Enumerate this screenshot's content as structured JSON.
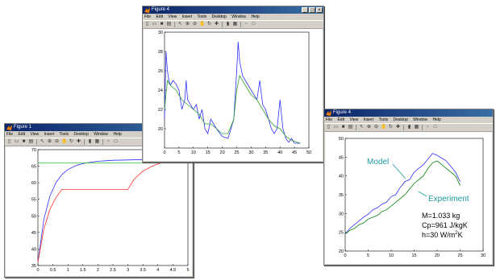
{
  "windows": [
    {
      "id": "w1",
      "title": "Figure 1"
    },
    {
      "id": "w2",
      "title": "Figure 4"
    },
    {
      "id": "w3",
      "title": "Figure 4"
    }
  ],
  "menu": [
    "File",
    "Edit",
    "View",
    "Insert",
    "Tools",
    "Desktop",
    "Window",
    "Help"
  ],
  "toolbar_icons": [
    "new-file-icon",
    "open-folder-icon",
    "save-icon",
    "print-icon",
    "arrow-icon",
    "zoom-in-icon",
    "zoom-out-icon",
    "pan-icon",
    "rotate-icon",
    "data-cursor-icon",
    "colorbar-icon",
    "legend-icon",
    "hide-plot-icon",
    "show-plot-icon"
  ],
  "chart_data": [
    {
      "window": "w1",
      "type": "line",
      "xlim": [
        0,
        5
      ],
      "ylim": [
        35,
        70
      ],
      "xticks": [
        "0",
        "0.5",
        "1",
        "1.5",
        "2",
        "2.5",
        "3",
        "3.5",
        "4",
        "4.5",
        "5"
      ],
      "yticks": [
        "35",
        "40",
        "45",
        "50",
        "55",
        "60",
        "65",
        "70"
      ],
      "series": [
        {
          "color": "#3030ff",
          "x": [
            0,
            0.2,
            0.4,
            0.6,
            0.8,
            1,
            1.3,
            1.6,
            2,
            2.5,
            3,
            3.5,
            4,
            4.5,
            5
          ],
          "y": [
            36,
            49,
            56,
            60,
            62.5,
            64,
            65.3,
            66,
            66.5,
            66.8,
            66.9,
            67,
            67,
            67,
            67
          ]
        },
        {
          "color": "#ff3030",
          "x": [
            0,
            0.2,
            0.4,
            0.6,
            0.8,
            1,
            1.5,
            2,
            2.5,
            3,
            3.2,
            3.5,
            3.8,
            4.1,
            4.5,
            5
          ],
          "y": [
            36,
            46,
            52,
            55.5,
            58,
            58,
            58,
            58,
            58,
            58,
            61,
            63.5,
            65,
            66,
            66.5,
            66.8
          ]
        },
        {
          "color": "#30c030",
          "x": [
            0,
            5
          ],
          "y": [
            66,
            66
          ]
        }
      ]
    },
    {
      "window": "w2",
      "type": "line",
      "xlim": [
        0,
        50
      ],
      "ylim": [
        18,
        30
      ],
      "xticks": [
        "0",
        "5",
        "10",
        "15",
        "20",
        "25",
        "30",
        "35",
        "40",
        "45",
        "50"
      ],
      "yticks": [
        "20",
        "22",
        "24",
        "26",
        "28",
        "30"
      ],
      "series": [
        {
          "color": "#3030ff",
          "x": [
            0,
            0.5,
            1,
            1.5,
            2,
            3,
            4,
            5,
            6,
            7,
            7.5,
            8,
            9,
            10,
            11,
            12,
            13,
            14,
            15,
            16,
            18,
            20,
            22,
            24,
            25,
            25.5,
            26,
            27,
            28,
            30,
            32,
            33,
            34,
            35,
            36,
            37,
            38,
            39,
            40,
            41,
            42,
            43,
            44,
            45,
            47
          ],
          "y": [
            21,
            28,
            26,
            25,
            24.5,
            25,
            24.6,
            24,
            22,
            23,
            25,
            23,
            22.5,
            22,
            22.5,
            21,
            22,
            20,
            19.5,
            21,
            20,
            19.2,
            19,
            21,
            26,
            29,
            27,
            25.5,
            25,
            24,
            23,
            25,
            22.5,
            22,
            21,
            20,
            19.5,
            20,
            23,
            20,
            19,
            18.6,
            19,
            18.5,
            18.5
          ]
        },
        {
          "color": "#30a030",
          "x": [
            0,
            1,
            2,
            4,
            6,
            8,
            10,
            12,
            14,
            16,
            18,
            20,
            22,
            24,
            25,
            26,
            28,
            30,
            32,
            34,
            36,
            38,
            40,
            42,
            44,
            47
          ],
          "y": [
            22,
            25,
            24.5,
            24,
            23,
            22.5,
            22,
            21.5,
            20.5,
            20.5,
            20,
            19.5,
            19.5,
            21,
            24,
            25.5,
            24.5,
            23.5,
            23,
            22,
            21,
            20.3,
            20,
            19.2,
            18.8,
            18.5
          ]
        }
      ]
    },
    {
      "window": "w3",
      "type": "line",
      "xlim": [
        0,
        30
      ],
      "ylim": [
        20,
        50
      ],
      "xticks": [
        "0",
        "5",
        "10",
        "15",
        "20",
        "25",
        "30"
      ],
      "yticks": [
        "20",
        "25",
        "30",
        "35",
        "40",
        "45",
        "50"
      ],
      "series": [
        {
          "name": "Model",
          "color": "#3030ff",
          "x": [
            0,
            1,
            2,
            3,
            4,
            5,
            6,
            7,
            8,
            9,
            10,
            11,
            12,
            13,
            14,
            15,
            16,
            17,
            18,
            19,
            20,
            22,
            24,
            25
          ],
          "y": [
            24.5,
            26,
            27,
            28,
            29,
            29.8,
            31,
            31.5,
            32.5,
            33,
            34.5,
            35,
            37,
            38.5,
            39,
            41,
            42,
            43,
            44.5,
            46,
            45.5,
            44,
            41,
            38.5
          ]
        },
        {
          "name": "Experiment",
          "color": "#008000",
          "x": [
            0,
            1,
            2,
            3,
            4,
            5,
            6,
            7,
            8,
            9,
            10,
            11,
            12,
            13,
            14,
            15,
            16,
            17,
            18,
            19,
            20,
            22,
            24,
            25
          ],
          "y": [
            24.5,
            25.5,
            26,
            27,
            27.5,
            28.5,
            29,
            29.5,
            30.5,
            31,
            32,
            33,
            34,
            35,
            36.5,
            38,
            39,
            40,
            42,
            43.5,
            44,
            42,
            40,
            37.5
          ]
        }
      ],
      "annotations": [
        "M=1.033 kg",
        "Cp=961 J/kgK",
        "h=30 W/m",
        "2",
        "K"
      ]
    }
  ]
}
